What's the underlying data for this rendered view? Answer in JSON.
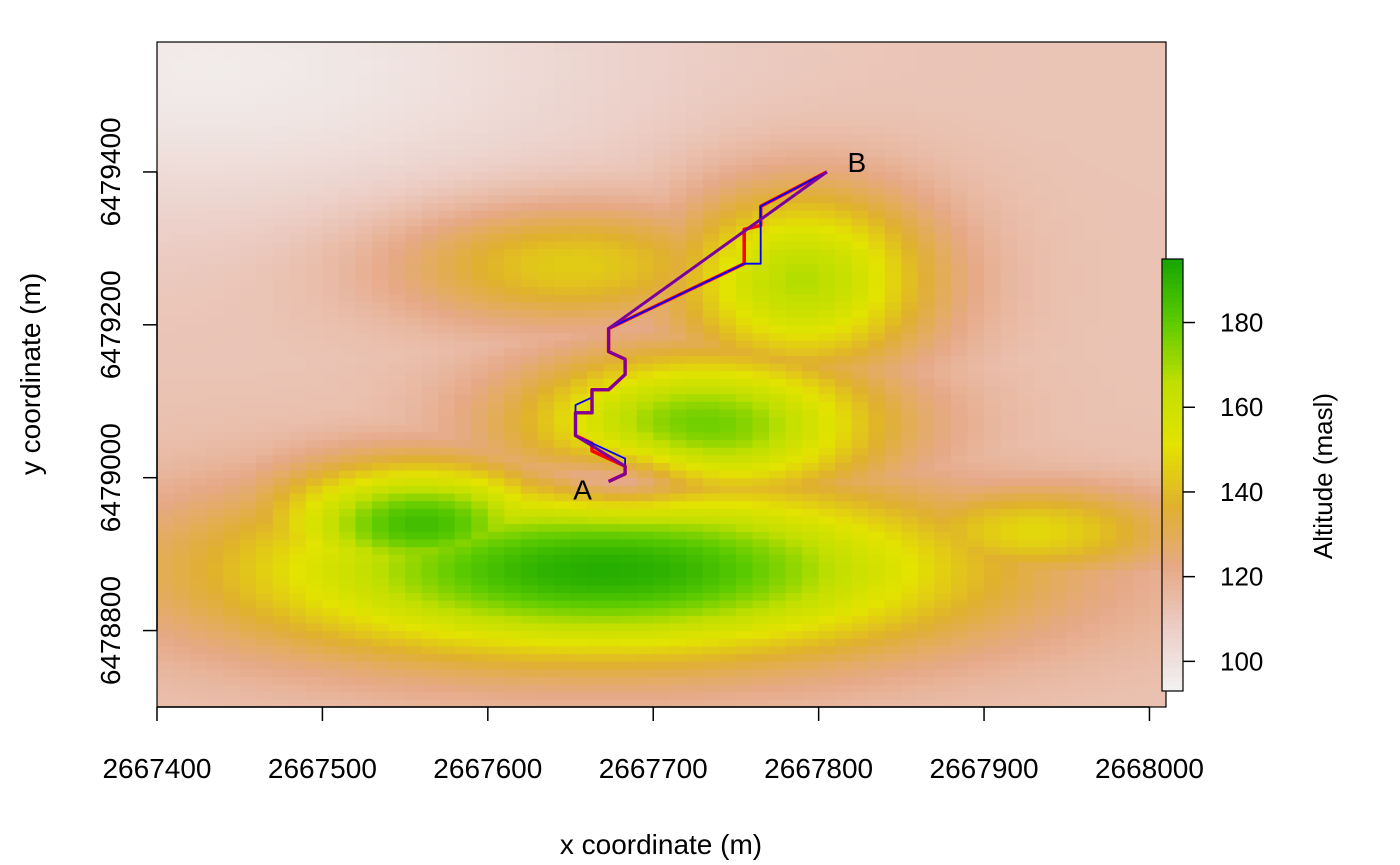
{
  "chart_data": {
    "type": "heatmap",
    "subtype": "raster-map-with-path-overlay",
    "xlabel": "x coordinate (m)",
    "ylabel": "y coordinate (m)",
    "xlim": [
      2667400,
      2668010
    ],
    "ylim": [
      6478700,
      6479570
    ],
    "x_ticks": [
      2667400,
      2667500,
      2667600,
      2667700,
      2667800,
      2667900,
      2668000
    ],
    "y_ticks": [
      6478800,
      6479000,
      6479200,
      6479400
    ],
    "x_tick_labels": [
      "2667400",
      "2667500",
      "2667600",
      "2667700",
      "2667800",
      "2667900",
      "2668000"
    ],
    "y_tick_labels": [
      "6478800",
      "6479000",
      "6479200",
      "6479400"
    ],
    "grid": false,
    "legend": {
      "type": "colorbar",
      "position": "right",
      "title": "Altitude (masl)",
      "range": [
        93,
        195
      ],
      "ticks": [
        100,
        120,
        140,
        160,
        180
      ],
      "tick_labels": [
        "100",
        "120",
        "140",
        "160",
        "180"
      ],
      "colors": [
        "#f2f2f2",
        "#eccfc8",
        "#e6a987",
        "#e0b02e",
        "#e3e300",
        "#c0df00",
        "#5ccb00",
        "#17a600"
      ]
    },
    "raster": {
      "cell_size_m": 10,
      "value_unit": "masl",
      "background_altitude": 112,
      "features": [
        {
          "kind": "main-hill",
          "center": [
            2667670,
            6478880
          ],
          "radius_x": 220,
          "radius_y": 115,
          "peak_altitude": 192
        },
        {
          "kind": "west-lobe",
          "center": [
            2667560,
            6478940
          ],
          "radius_x": 90,
          "radius_y": 80,
          "peak_altitude": 186
        },
        {
          "kind": "central-ridge",
          "center": [
            2667730,
            6479070
          ],
          "radius_x": 110,
          "radius_y": 95,
          "peak_altitude": 178
        },
        {
          "kind": "north-ridge",
          "center": [
            2667790,
            6479260
          ],
          "radius_x": 80,
          "radius_y": 120,
          "peak_altitude": 168
        },
        {
          "kind": "north-shoulder",
          "center": [
            2667650,
            6479280
          ],
          "radius_x": 110,
          "radius_y": 80,
          "peak_altitude": 146
        },
        {
          "kind": "east-spur",
          "center": [
            2667930,
            6478930
          ],
          "radius_x": 90,
          "radius_y": 60,
          "peak_altitude": 148
        },
        {
          "kind": "saddle-near-A",
          "center": [
            2667680,
            6479000
          ],
          "radius_x": 45,
          "radius_y": 45,
          "peak_altitude": -20
        },
        {
          "kind": "low-northwest",
          "center": [
            2667430,
            6479540
          ],
          "radius_x": 250,
          "radius_y": 200,
          "peak_altitude": -16
        }
      ]
    },
    "points": [
      {
        "label": "A",
        "x": 2667673,
        "y": 6478995
      },
      {
        "label": "B",
        "x": 2667805,
        "y": 6479400
      }
    ],
    "series": [
      {
        "color": "#ff0000",
        "x": [
          2667673,
          2667683,
          2667683,
          2667663,
          2667663,
          2667653,
          2667653,
          2667663,
          2667663,
          2667673,
          2667683,
          2667683,
          2667673,
          2667673,
          2667755,
          2667755,
          2667765,
          2667765,
          2667805
        ],
        "y": [
          6478995,
          6479005,
          6479015,
          6479035,
          6479045,
          6479055,
          6479085,
          6479085,
          6479115,
          6479115,
          6479135,
          6479155,
          6479165,
          6479195,
          6479280,
          6479325,
          6479330,
          6479355,
          6479400
        ]
      },
      {
        "color": "#0000ff",
        "x": [
          2667673,
          2667683,
          2667683,
          2667653,
          2667653,
          2667663,
          2667663,
          2667673,
          2667683,
          2667683,
          2667673,
          2667673,
          2667755,
          2667765,
          2667765,
          2667805
        ],
        "y": [
          6478995,
          6479005,
          6479025,
          6479055,
          6479095,
          6479105,
          6479115,
          6479115,
          6479135,
          6479155,
          6479165,
          6479195,
          6479280,
          6479280,
          6479355,
          6479400
        ]
      },
      {
        "color": "#7b00a0",
        "x": [
          2667673,
          2667683,
          2667683,
          2667653,
          2667653,
          2667663,
          2667663,
          2667673,
          2667683,
          2667683,
          2667673,
          2667673,
          2667805
        ],
        "y": [
          6478995,
          6479005,
          6479015,
          6479055,
          6479085,
          6479085,
          6479115,
          6479115,
          6479135,
          6479155,
          6479165,
          6479195,
          6479400
        ]
      }
    ]
  }
}
